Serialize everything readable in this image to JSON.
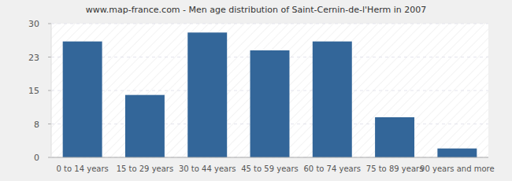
{
  "chart_data": {
    "type": "bar",
    "title": "www.map-france.com - Men age distribution of Saint-Cernin-de-l'Herm in 2007",
    "categories": [
      "0 to 14 years",
      "15 to 29 years",
      "30 to 44 years",
      "45 to 59 years",
      "60 to 74 years",
      "75 to 89 years",
      "90 years and more"
    ],
    "values": [
      26,
      14,
      28,
      24,
      26,
      9,
      2
    ],
    "color": "#336699",
    "ylim": [
      0,
      30
    ],
    "yticks": [
      0,
      {
        "value": 7.5,
        "label": "8"
      },
      15,
      {
        "value": 22.5,
        "label": "23"
      },
      30
    ],
    "grid": true
  }
}
